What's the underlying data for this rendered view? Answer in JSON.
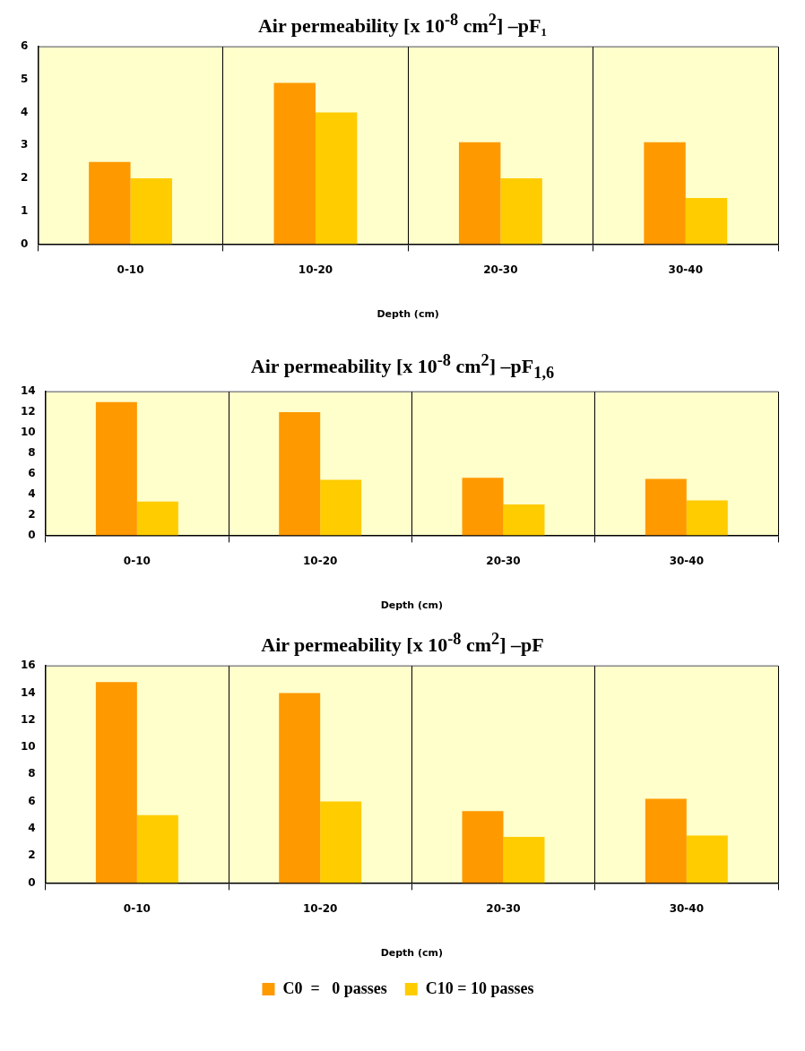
{
  "chart_data": [
    {
      "type": "bar",
      "title": "Air permeability [x 10$^{-8}$ cm$^{2}$] –pF₁",
      "xlabel": "Depth (cm)",
      "categories": [
        "0-10",
        "10-20",
        "20-30",
        "30-40"
      ],
      "series": [
        {
          "color": "#ff9900",
          "values": [
            2.5,
            4.9,
            3.1,
            3.1
          ]
        },
        {
          "color": "#ffcc00",
          "values": [
            2.0,
            4.0,
            2.0,
            1.4
          ]
        }
      ],
      "ylim": [
        0,
        6
      ],
      "yticks": [
        0,
        1,
        2,
        3,
        4,
        5,
        6
      ],
      "grid": "x",
      "legend": false
    },
    {
      "type": "bar",
      "title": "Air permeability [x 10$^{-8}$ cm$^{2}$] –pF$_{1,6}$",
      "xlabel": "Depth (cm)",
      "categories": [
        "0-10",
        "10-20",
        "20-30",
        "30-40"
      ],
      "series": [
        {
          "color": "#ff9900",
          "values": [
            13.0,
            12.0,
            5.6,
            5.5
          ]
        },
        {
          "color": "#ffcc00",
          "values": [
            3.3,
            5.4,
            3.0,
            3.4
          ]
        }
      ],
      "ylim": [
        0,
        14
      ],
      "yticks": [
        0,
        2,
        4,
        6,
        8,
        10,
        12,
        14
      ],
      "grid": "x",
      "legend": false
    },
    {
      "type": "bar",
      "title": "Air permeability [x 10$^{-8}$ cm$^{2}$] –pF",
      "xlabel": "Depth (cm)",
      "categories": [
        "0-10",
        "10-20",
        "20-30",
        "30-40"
      ],
      "series": [
        {
          "name": "C0  =   0 passes",
          "color": "#ff9900",
          "values": [
            14.8,
            14.0,
            5.3,
            6.2
          ]
        },
        {
          "name": "C10 = 10 passes",
          "color": "#ffcc00",
          "values": [
            5.0,
            6.0,
            3.4,
            3.5
          ]
        }
      ],
      "ylim": [
        0,
        16
      ],
      "yticks": [
        0,
        2,
        4,
        6,
        8,
        10,
        12,
        14,
        16
      ],
      "grid": "x",
      "legend": "bottom"
    }
  ]
}
